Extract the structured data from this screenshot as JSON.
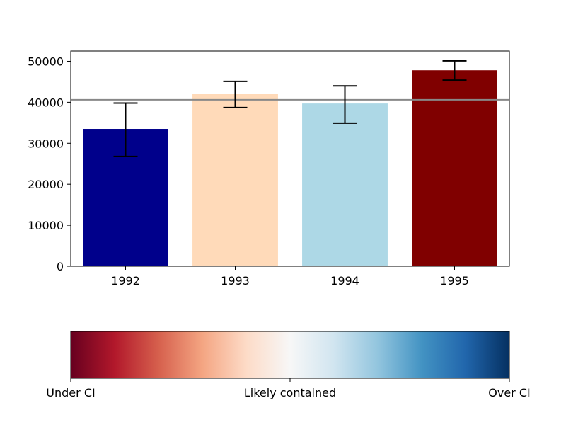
{
  "chart_data": {
    "type": "bar",
    "title": "",
    "xlabel": "",
    "ylabel": "",
    "categories": [
      "1992",
      "1993",
      "1994",
      "1995"
    ],
    "values": [
      33500,
      42000,
      39700,
      47800
    ],
    "errors": [
      {
        "low": 26800,
        "high": 39800
      },
      {
        "low": 38700,
        "high": 45100
      },
      {
        "low": 34900,
        "high": 44000
      },
      {
        "low": 45400,
        "high": 50100
      }
    ],
    "bar_colors": [
      "#00008b",
      "#ffdab9",
      "#add8e6",
      "#800000"
    ],
    "reference_line": {
      "y": 40600,
      "color": "#888888"
    },
    "ylim": [
      0,
      52500
    ],
    "yticks": [
      0,
      10000,
      20000,
      30000,
      40000,
      50000
    ],
    "grid": false,
    "colorbar": {
      "orientation": "horizontal",
      "colormap": "RdBu",
      "colors": [
        "#67001f",
        "#b2182b",
        "#d6604d",
        "#f4a582",
        "#fddbc7",
        "#f7f7f7",
        "#d1e5f0",
        "#92c5de",
        "#4393c3",
        "#2166ac",
        "#053061"
      ],
      "ticks": [
        {
          "pos": 0,
          "label": "Under CI"
        },
        {
          "pos": 0.5,
          "label": "Likely contained"
        },
        {
          "pos": 1,
          "label": "Over CI"
        }
      ]
    }
  }
}
